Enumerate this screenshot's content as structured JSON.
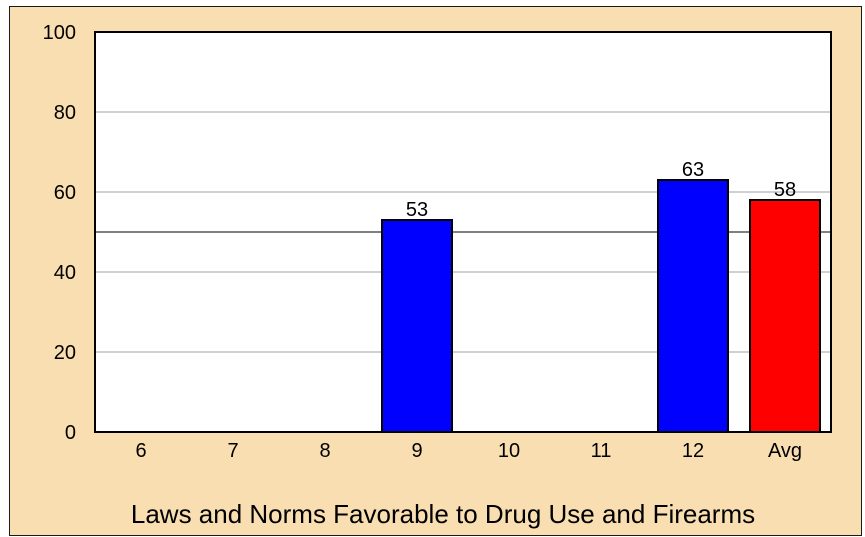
{
  "chart_data": {
    "type": "bar",
    "title": "Laws and Norms Favorable to Drug Use and Firearms",
    "categories": [
      "6",
      "7",
      "8",
      "9",
      "10",
      "11",
      "12",
      "Avg"
    ],
    "values": [
      null,
      null,
      null,
      53,
      null,
      null,
      63,
      58
    ],
    "bar_colors": [
      "#0000ff",
      "#0000ff",
      "#0000ff",
      "#0000ff",
      "#0000ff",
      "#0000ff",
      "#0000ff",
      "#ff0000"
    ],
    "ylim": [
      0,
      100
    ],
    "yticks": [
      0,
      20,
      40,
      60,
      80,
      100
    ],
    "reference_line": 50,
    "grid": true,
    "background": "#f9deb2",
    "plot_background": "#ffffff"
  }
}
